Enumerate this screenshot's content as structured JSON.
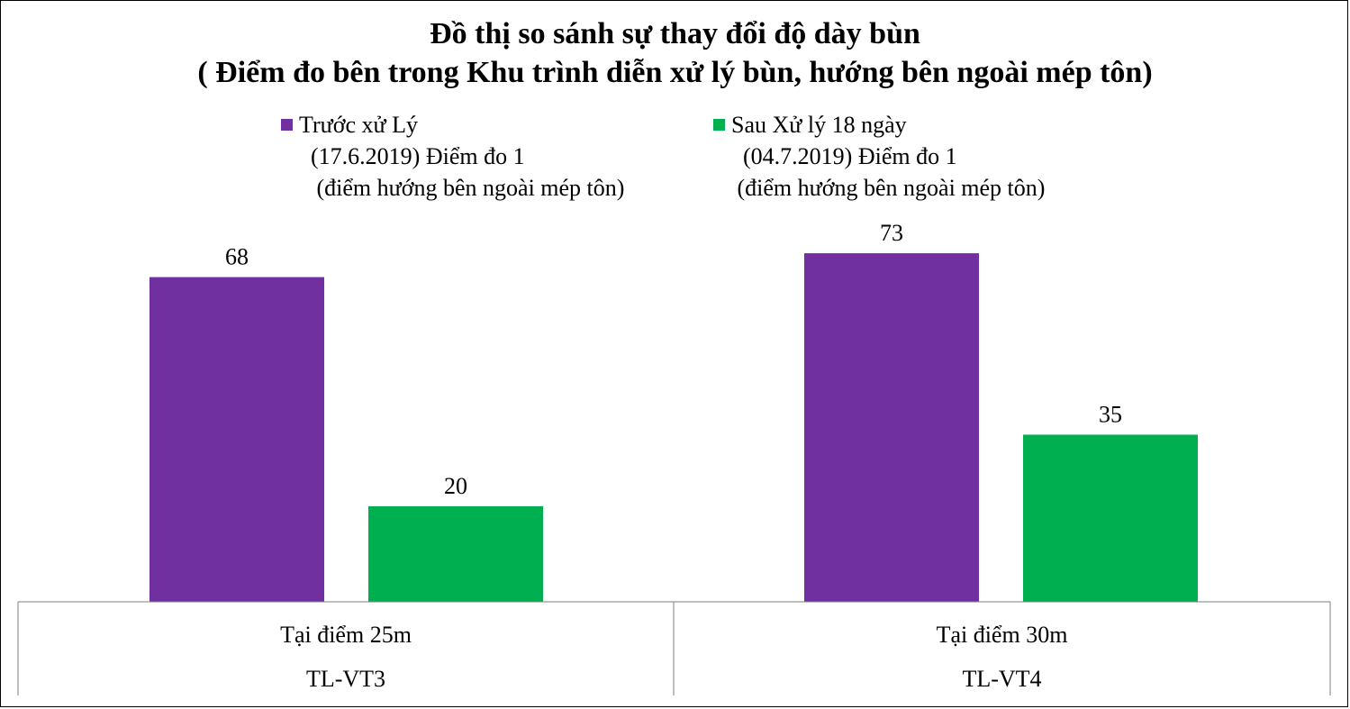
{
  "chart_data": {
    "type": "bar",
    "title": "Đồ thị so sánh sự thay đổi độ dày bùn",
    "subtitle": "( Điểm đo bên trong Khu trình diễn xử lý bùn, hướng bên ngoài mép tôn)",
    "categories": [
      {
        "level1": "Tại điểm 25m",
        "level2": "TL-VT3"
      },
      {
        "level1": "Tại điểm 30m",
        "level2": "TL-VT4"
      }
    ],
    "series": [
      {
        "name": "Trước xử Lý\n  (17.6.2019) Điểm đo 1\n   (điểm hướng bên ngoài mép tôn)",
        "color": "#7030a0",
        "values": [
          68,
          73
        ]
      },
      {
        "name": "Sau Xử lý 18 ngày\n  (04.7.2019) Điểm đo 1\n (điểm hướng bên ngoài mép tôn)",
        "color": "#00b050",
        "values": [
          20,
          35
        ]
      }
    ],
    "data_labels": true,
    "legend_position": "top",
    "grid": false,
    "ylim": [
      0,
      73
    ]
  }
}
